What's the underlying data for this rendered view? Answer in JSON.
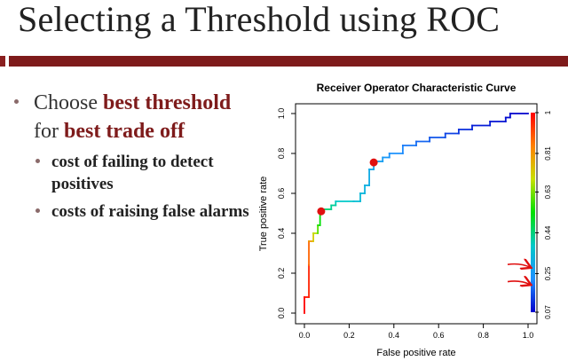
{
  "slide": {
    "title": "Selecting a Threshold using ROC",
    "bullet1": {
      "prefix": "Choose ",
      "em1": "best threshold",
      "mid": "for ",
      "em2": "best trade off"
    },
    "subbullets": [
      "cost of failing to detect positives",
      "costs of raising false alarms"
    ]
  },
  "colors": {
    "title_bar": "#7e1b1b",
    "emphasis": "#7e1b1b",
    "marker": "#e01010",
    "annotation_arrow": "#e01010"
  },
  "chart_data": {
    "type": "line",
    "title": "Receiver Operator Characteristic Curve",
    "xlabel": "False positive rate",
    "ylabel": "True positive rate",
    "xlim": [
      0,
      1
    ],
    "ylim": [
      0,
      1
    ],
    "x_ticks": [
      "0.0",
      "0.2",
      "0.4",
      "0.6",
      "0.8",
      "1.0"
    ],
    "y_ticks": [
      "0.0",
      "0.2",
      "0.4",
      "0.6",
      "0.8",
      "1.0"
    ],
    "colorbar": {
      "ticks": [
        "0.07",
        "0.25",
        "0.44",
        "0.63",
        "0.81",
        "1"
      ],
      "range": [
        0.07,
        1
      ],
      "colors": [
        "#0000cd",
        "#1e90ff",
        "#00c8c8",
        "#00e000",
        "#c8e000",
        "#ff8000",
        "#ff0000"
      ]
    },
    "series": [
      {
        "x": [
          0.0,
          0.0,
          0.02,
          0.02,
          0.02,
          0.04,
          0.04,
          0.06,
          0.06,
          0.07,
          0.07,
          0.08,
          0.08,
          0.12,
          0.12,
          0.14,
          0.14,
          0.22,
          0.25,
          0.25,
          0.27,
          0.27,
          0.29,
          0.29,
          0.31,
          0.31,
          0.35,
          0.35,
          0.38,
          0.38,
          0.44,
          0.44,
          0.5,
          0.5,
          0.56,
          0.56,
          0.63,
          0.63,
          0.69,
          0.69,
          0.75,
          0.75,
          0.83,
          0.83,
          0.9,
          0.9,
          0.92,
          0.92,
          1.0
        ],
        "y": [
          0.0,
          0.08,
          0.08,
          0.24,
          0.36,
          0.36,
          0.4,
          0.4,
          0.44,
          0.44,
          0.5,
          0.5,
          0.52,
          0.52,
          0.54,
          0.54,
          0.56,
          0.56,
          0.56,
          0.6,
          0.6,
          0.64,
          0.64,
          0.72,
          0.72,
          0.76,
          0.76,
          0.78,
          0.78,
          0.8,
          0.8,
          0.84,
          0.84,
          0.86,
          0.86,
          0.88,
          0.88,
          0.9,
          0.9,
          0.92,
          0.92,
          0.94,
          0.94,
          0.96,
          0.96,
          0.98,
          0.98,
          1.0,
          1.0
        ],
        "threshold": [
          1.0,
          0.98,
          0.96,
          0.88,
          0.8,
          0.72,
          0.68,
          0.6,
          0.56,
          0.53,
          0.5,
          0.47,
          0.45,
          0.42,
          0.42,
          0.4,
          0.38,
          0.35,
          0.34,
          0.33,
          0.32,
          0.31,
          0.3,
          0.29,
          0.28,
          0.27,
          0.26,
          0.25,
          0.24,
          0.23,
          0.22,
          0.2,
          0.19,
          0.18,
          0.17,
          0.16,
          0.15,
          0.14,
          0.13,
          0.12,
          0.11,
          0.1,
          0.1,
          0.09,
          0.09,
          0.08,
          0.08,
          0.07,
          0.07
        ]
      }
    ],
    "markers": [
      {
        "x": 0.075,
        "y": 0.51
      },
      {
        "x": 0.31,
        "y": 0.755
      }
    ],
    "annotations": [
      {
        "type": "arrow",
        "colorbar_value": 0.28
      },
      {
        "type": "arrow",
        "colorbar_value": 0.2
      }
    ]
  }
}
